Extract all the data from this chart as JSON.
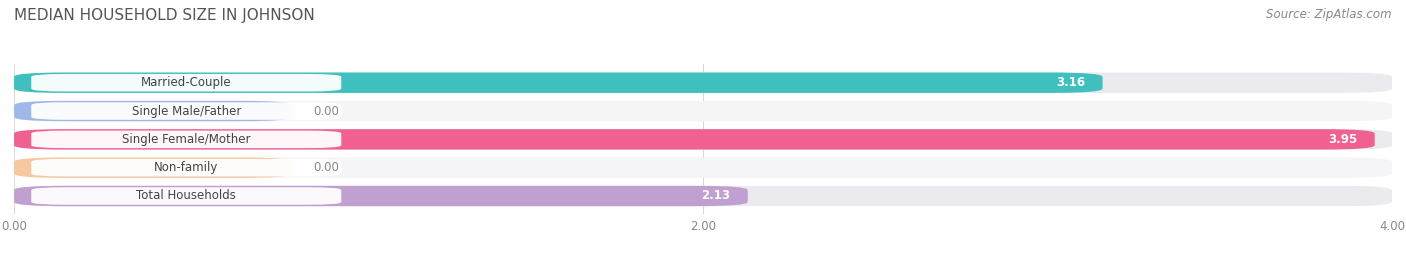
{
  "title": "MEDIAN HOUSEHOLD SIZE IN JOHNSON",
  "source": "Source: ZipAtlas.com",
  "categories": [
    "Married-Couple",
    "Single Male/Father",
    "Single Female/Mother",
    "Non-family",
    "Total Households"
  ],
  "values": [
    3.16,
    0.0,
    3.95,
    0.0,
    2.13
  ],
  "bar_colors": [
    "#40bfbf",
    "#a0b8e8",
    "#f06090",
    "#f5c8a0",
    "#c0a0d0"
  ],
  "xlim": [
    0.0,
    4.0
  ],
  "xticks": [
    0.0,
    2.0,
    4.0
  ],
  "background_color": "#ffffff",
  "row_bg_colors": [
    "#ebebef",
    "#f5f5f8",
    "#ebebef",
    "#f5f5f8",
    "#ebebef"
  ],
  "title_fontsize": 11,
  "label_fontsize": 8.5,
  "value_fontsize": 8.5,
  "source_fontsize": 8.5
}
